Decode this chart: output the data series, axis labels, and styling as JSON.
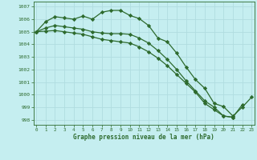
{
  "title": "Graphe pression niveau de la mer (hPa)",
  "background_color": "#c5eef0",
  "grid_color": "#b0dde0",
  "line_color": "#2d6a2d",
  "xlim": [
    -0.3,
    23.3
  ],
  "ylim": [
    997.6,
    1007.4
  ],
  "yticks": [
    998,
    999,
    1000,
    1001,
    1002,
    1003,
    1004,
    1005,
    1006,
    1007
  ],
  "xticks": [
    0,
    1,
    2,
    3,
    4,
    5,
    6,
    7,
    8,
    9,
    10,
    11,
    12,
    13,
    14,
    15,
    16,
    17,
    18,
    19,
    20,
    21,
    22,
    23
  ],
  "line1_x": [
    0,
    1,
    2,
    3,
    4,
    5,
    6,
    7,
    8,
    9,
    10,
    11,
    12,
    13,
    14,
    15,
    16,
    17,
    18,
    19,
    20,
    21,
    22,
    23
  ],
  "line1_y": [
    1005.0,
    1005.8,
    1006.2,
    1006.1,
    1006.0,
    1006.25,
    1006.0,
    1006.55,
    1006.7,
    1006.7,
    1006.3,
    1006.05,
    1005.5,
    1004.5,
    1004.2,
    1003.3,
    1002.2,
    1001.2,
    1000.5,
    999.3,
    999.05,
    998.3,
    999.0,
    999.8
  ],
  "line2_x": [
    0,
    1,
    2,
    3,
    4,
    5,
    6,
    7,
    8,
    9,
    10,
    11,
    12,
    13,
    14,
    15,
    16,
    17,
    18,
    19,
    20,
    21,
    22
  ],
  "line2_y": [
    1005.0,
    1005.3,
    1005.5,
    1005.4,
    1005.3,
    1005.2,
    1005.0,
    1004.9,
    1004.85,
    1004.85,
    1004.8,
    1004.5,
    1004.1,
    1003.5,
    1002.8,
    1002.0,
    1001.1,
    1000.3,
    999.5,
    999.0,
    998.3,
    998.2,
    999.2
  ],
  "line3_x": [
    0,
    1,
    2,
    3,
    4,
    5,
    6,
    7,
    8,
    9,
    10,
    11,
    12,
    13,
    14,
    15,
    16,
    17,
    18,
    19,
    20,
    21
  ],
  "line3_y": [
    1005.0,
    1005.05,
    1005.1,
    1005.0,
    1004.9,
    1004.8,
    1004.6,
    1004.4,
    1004.3,
    1004.2,
    1004.1,
    1003.8,
    1003.4,
    1002.9,
    1002.3,
    1001.6,
    1000.9,
    1000.2,
    999.3,
    998.8,
    998.3,
    998.2
  ]
}
